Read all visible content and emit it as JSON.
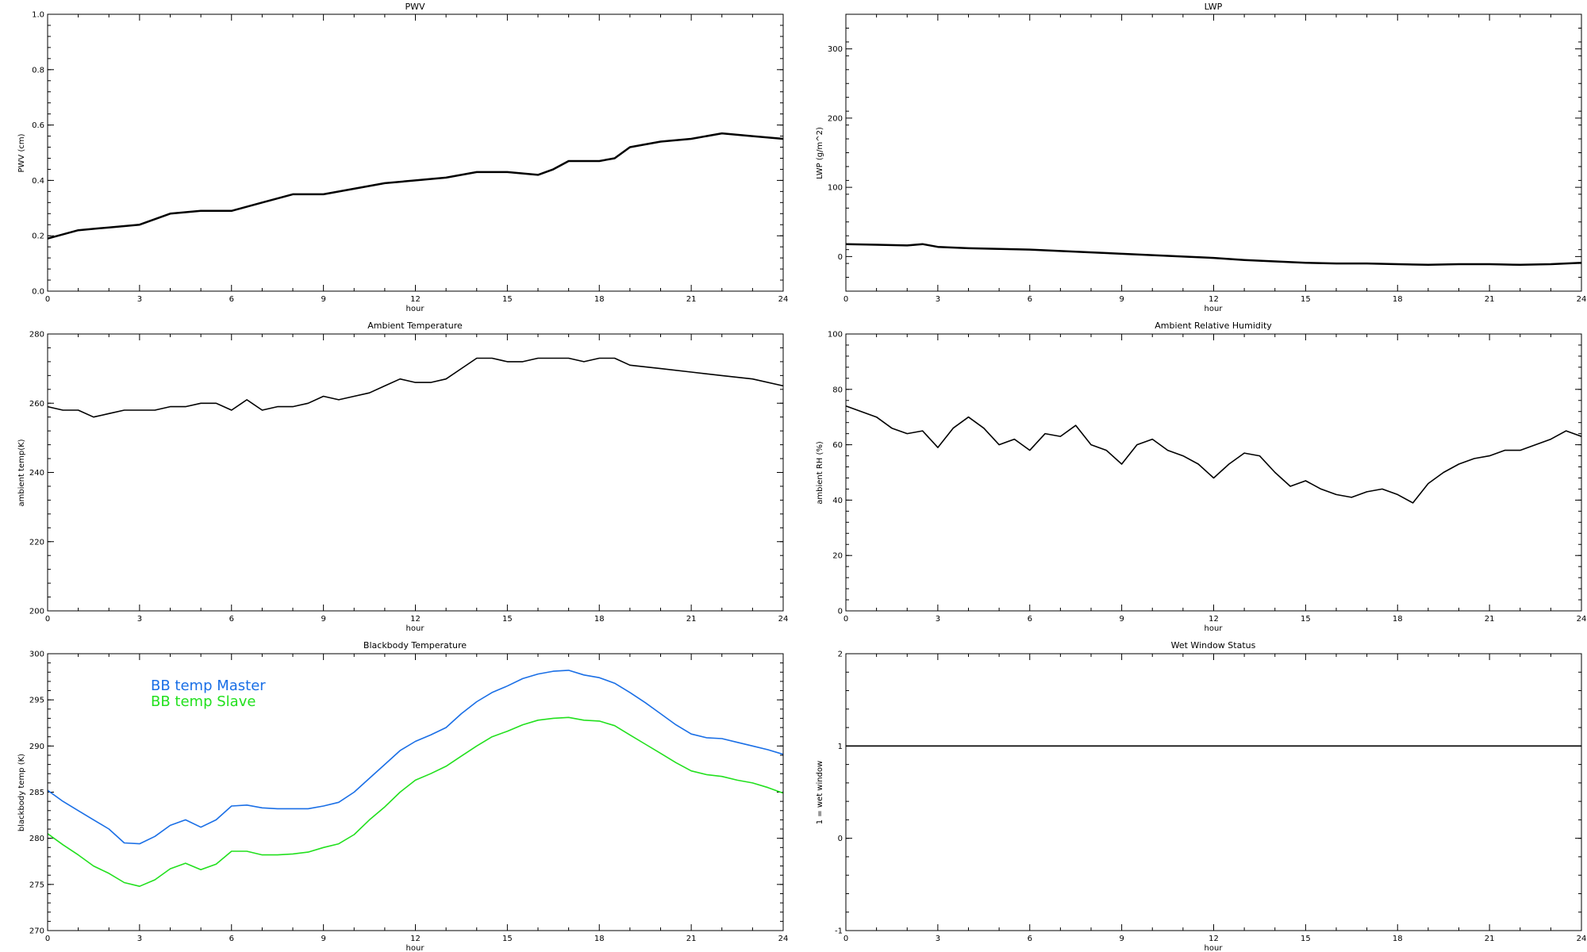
{
  "chart_data": [
    {
      "type": "line",
      "title": "PWV",
      "xlabel": "hour",
      "ylabel": "PWV (cm)",
      "xlim": [
        0,
        24
      ],
      "ylim": [
        0,
        1.0
      ],
      "xticks": [
        "0",
        "3",
        "6",
        "9",
        "12",
        "15",
        "18",
        "21",
        "24"
      ],
      "yticks": [
        "0.0",
        "0.2",
        "0.4",
        "0.6",
        "0.8",
        "1.0"
      ],
      "grid": false,
      "series": [
        {
          "color": "#000000",
          "x": [
            0,
            1,
            2,
            3,
            4,
            5,
            6,
            7,
            8,
            9,
            10,
            11,
            12,
            13,
            14,
            15,
            16,
            16.5,
            17,
            18,
            18.5,
            19,
            20,
            21,
            22,
            23,
            24
          ],
          "y": [
            0.19,
            0.22,
            0.23,
            0.24,
            0.28,
            0.29,
            0.29,
            0.32,
            0.35,
            0.35,
            0.37,
            0.39,
            0.4,
            0.41,
            0.43,
            0.43,
            0.42,
            0.44,
            0.47,
            0.47,
            0.48,
            0.52,
            0.54,
            0.55,
            0.57,
            0.56,
            0.55
          ]
        }
      ]
    },
    {
      "type": "line",
      "title": "LWP",
      "xlabel": "hour",
      "ylabel": "LWP (g/m^2)",
      "xlim": [
        0,
        24
      ],
      "ylim": [
        -50,
        350
      ],
      "xticks": [
        "0",
        "3",
        "6",
        "9",
        "12",
        "15",
        "18",
        "21",
        "24"
      ],
      "yticks": [
        "0",
        "100",
        "200",
        "300"
      ],
      "grid": false,
      "series": [
        {
          "color": "#000000",
          "x": [
            0,
            1,
            2,
            2.5,
            3,
            4,
            5,
            6,
            7,
            8,
            9,
            10,
            11,
            12,
            13,
            14,
            15,
            16,
            17,
            18,
            19,
            20,
            21,
            22,
            23,
            24
          ],
          "y": [
            18,
            17,
            16,
            18,
            14,
            12,
            11,
            10,
            8,
            6,
            4,
            2,
            0,
            -2,
            -5,
            -7,
            -9,
            -10,
            -10,
            -11,
            -12,
            -11,
            -11,
            -12,
            -11,
            -9
          ]
        }
      ]
    },
    {
      "type": "line",
      "title": "Ambient Temperature",
      "xlabel": "hour",
      "ylabel": "ambient temp(K)",
      "xlim": [
        0,
        24
      ],
      "ylim": [
        200,
        280
      ],
      "xticks": [
        "0",
        "3",
        "6",
        "9",
        "12",
        "15",
        "18",
        "21",
        "24"
      ],
      "yticks": [
        "200",
        "220",
        "240",
        "260",
        "280"
      ],
      "grid": false,
      "series": [
        {
          "color": "#000000",
          "x": [
            0,
            0.5,
            1,
            1.5,
            2,
            2.5,
            3,
            3.5,
            4,
            4.5,
            5,
            5.5,
            6,
            6.5,
            7,
            7.5,
            8,
            8.5,
            9,
            9.5,
            10,
            10.5,
            11,
            11.5,
            12,
            12.5,
            13,
            13.5,
            14,
            14.5,
            15,
            15.5,
            16,
            16.5,
            17,
            17.5,
            18,
            18.5,
            19,
            20,
            21,
            22,
            23,
            24
          ],
          "y": [
            259,
            258,
            258,
            256,
            257,
            258,
            258,
            258,
            259,
            259,
            260,
            260,
            258,
            261,
            258,
            259,
            259,
            260,
            262,
            261,
            262,
            263,
            265,
            267,
            266,
            266,
            267,
            270,
            273,
            273,
            272,
            272,
            273,
            273,
            273,
            272,
            273,
            273,
            271,
            270,
            269,
            268,
            267,
            265
          ]
        }
      ]
    },
    {
      "type": "line",
      "title": "Ambient Relative Humidity",
      "xlabel": "hour",
      "ylabel": "ambient RH (%)",
      "xlim": [
        0,
        24
      ],
      "ylim": [
        0,
        100
      ],
      "xticks": [
        "0",
        "3",
        "6",
        "9",
        "12",
        "15",
        "18",
        "21",
        "24"
      ],
      "yticks": [
        "0",
        "20",
        "40",
        "60",
        "80",
        "100"
      ],
      "grid": false,
      "series": [
        {
          "color": "#000000",
          "x": [
            0,
            0.5,
            1,
            1.5,
            2,
            2.5,
            3,
            3.5,
            4,
            4.5,
            5,
            5.5,
            6,
            6.5,
            7,
            7.5,
            8,
            8.5,
            9,
            9.5,
            10,
            10.5,
            11,
            11.5,
            12,
            12.5,
            13,
            13.5,
            14,
            14.5,
            15,
            15.5,
            16,
            16.5,
            17,
            17.5,
            18,
            18.5,
            19,
            19.5,
            20,
            20.5,
            21,
            21.5,
            22,
            22.5,
            23,
            23.5,
            24
          ],
          "y": [
            74,
            72,
            70,
            66,
            64,
            65,
            59,
            66,
            70,
            66,
            60,
            62,
            58,
            64,
            63,
            67,
            60,
            58,
            53,
            60,
            62,
            58,
            56,
            53,
            48,
            53,
            57,
            56,
            50,
            45,
            47,
            44,
            42,
            41,
            43,
            44,
            42,
            39,
            46,
            50,
            53,
            55,
            56,
            58,
            58,
            60,
            62,
            65,
            63
          ]
        }
      ]
    },
    {
      "type": "line",
      "title": "Blackbody Temperature",
      "xlabel": "hour",
      "ylabel": "blackbody temp (K)",
      "xlim": [
        0,
        24
      ],
      "ylim": [
        270,
        300
      ],
      "xticks": [
        "0",
        "3",
        "6",
        "9",
        "12",
        "15",
        "18",
        "21",
        "24"
      ],
      "yticks": [
        "270",
        "275",
        "280",
        "285",
        "290",
        "295",
        "300"
      ],
      "grid": false,
      "legend_position": "top-left",
      "series": [
        {
          "name": "BB temp Master",
          "color": "#1a6fe6",
          "x": [
            0,
            0.5,
            1,
            1.5,
            2,
            2.5,
            3,
            3.5,
            4,
            4.5,
            5,
            5.5,
            6,
            6.5,
            7,
            7.5,
            8,
            8.5,
            9,
            9.5,
            10,
            10.5,
            11,
            11.5,
            12,
            12.5,
            13,
            13.5,
            14,
            14.5,
            15,
            15.5,
            16,
            16.5,
            17,
            17.5,
            18,
            18.5,
            19,
            19.5,
            20,
            20.5,
            21,
            21.5,
            22,
            22.5,
            23,
            23.5,
            24
          ],
          "y": [
            285.2,
            284,
            283,
            282,
            281,
            279.5,
            279.4,
            280.2,
            281.4,
            282,
            281.2,
            282,
            283.5,
            283.6,
            283.3,
            283.2,
            283.2,
            283.2,
            283.5,
            283.9,
            285,
            286.5,
            288,
            289.5,
            290.5,
            291.2,
            292,
            293.5,
            294.8,
            295.8,
            296.5,
            297.3,
            297.8,
            298.1,
            298.2,
            297.7,
            297.4,
            296.8,
            295.8,
            294.7,
            293.5,
            292.3,
            291.3,
            290.9,
            290.8,
            290.4,
            290,
            289.6,
            289.1
          ]
        },
        {
          "name": "BB temp Slave",
          "color": "#22e01e",
          "x": [
            0,
            0.5,
            1,
            1.5,
            2,
            2.5,
            3,
            3.5,
            4,
            4.5,
            5,
            5.5,
            6,
            6.5,
            7,
            7.5,
            8,
            8.5,
            9,
            9.5,
            10,
            10.5,
            11,
            11.5,
            12,
            12.5,
            13,
            13.5,
            14,
            14.5,
            15,
            15.5,
            16,
            16.5,
            17,
            17.5,
            18,
            18.5,
            19,
            19.5,
            20,
            20.5,
            21,
            21.5,
            22,
            22.5,
            23,
            23.5,
            24
          ],
          "y": [
            280.5,
            279.3,
            278.2,
            277,
            276.2,
            275.2,
            274.8,
            275.5,
            276.7,
            277.3,
            276.6,
            277.2,
            278.6,
            278.6,
            278.2,
            278.2,
            278.3,
            278.5,
            279,
            279.4,
            280.4,
            282,
            283.4,
            285,
            286.3,
            287,
            287.8,
            288.9,
            290,
            291,
            291.6,
            292.3,
            292.8,
            293,
            293.1,
            292.8,
            292.7,
            292.2,
            291.2,
            290.2,
            289.2,
            288.2,
            287.3,
            286.9,
            286.7,
            286.3,
            286,
            285.5,
            284.9
          ]
        }
      ]
    },
    {
      "type": "line",
      "title": "Wet Window Status",
      "xlabel": "hour",
      "ylabel": "1 = wet window",
      "xlim": [
        0,
        24
      ],
      "ylim": [
        -1,
        2
      ],
      "xticks": [
        "0",
        "3",
        "6",
        "9",
        "12",
        "15",
        "18",
        "21",
        "24"
      ],
      "yticks": [
        "-1",
        "0",
        "1",
        "2"
      ],
      "grid": false,
      "series": [
        {
          "color": "#000000",
          "x": [
            0,
            24
          ],
          "y": [
            1,
            1
          ]
        }
      ]
    }
  ]
}
